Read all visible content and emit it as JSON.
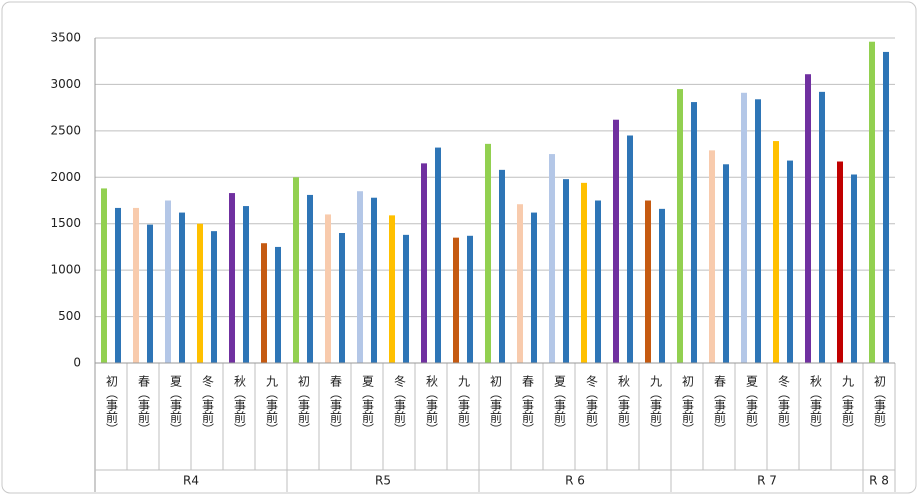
{
  "chart_data": {
    "type": "bar",
    "groups": [
      {
        "label": "R4",
        "categories": [
          "初（事前）",
          "春（事前）",
          "夏（事前）",
          "冬（事前）",
          "秋（事前）",
          "九（事前）"
        ]
      },
      {
        "label": "R5",
        "categories": [
          "初（事前）",
          "春（事前）",
          "夏（事前）",
          "冬（事前）",
          "秋（事前）",
          "九（事前）"
        ]
      },
      {
        "label": "R 6",
        "categories": [
          "初（事前）",
          "春（事前）",
          "夏（事前）",
          "冬（事前）",
          "秋（事前）",
          "九（事前）"
        ]
      },
      {
        "label": "R 7",
        "categories": [
          "初（事前）",
          "春（事前）",
          "夏（事前）",
          "冬（事前）",
          "秋（事前）",
          "九（事前）"
        ]
      },
      {
        "label": "R 8",
        "categories": [
          "初（事前）"
        ]
      }
    ],
    "series": [
      {
        "colors": [
          "#92d050",
          "#f8cbad",
          "#b4c7e7",
          "#ffc000",
          "#7030a0",
          "#c55a11",
          "#92d050",
          "#f8cbad",
          "#b4c7e7",
          "#ffc000",
          "#7030a0",
          "#c55a11",
          "#92d050",
          "#f8cbad",
          "#b4c7e7",
          "#ffc000",
          "#7030a0",
          "#c55a11",
          "#92d050",
          "#f8cbad",
          "#b4c7e7",
          "#ffc000",
          "#7030a0",
          "#c00000",
          "#92d050"
        ],
        "values": [
          1880,
          1670,
          1750,
          1500,
          1830,
          1290,
          2000,
          1600,
          1850,
          1590,
          2150,
          1350,
          2360,
          1710,
          2250,
          1940,
          2620,
          1750,
          2950,
          2290,
          2910,
          2390,
          3110,
          2170,
          3460
        ]
      },
      {
        "color": "#2e75b6",
        "values": [
          1670,
          1490,
          1620,
          1420,
          1690,
          1250,
          1810,
          1400,
          1780,
          1380,
          2320,
          1370,
          2080,
          1620,
          1980,
          1750,
          2450,
          1660,
          2810,
          2140,
          2840,
          2180,
          2920,
          2030,
          3350
        ]
      }
    ],
    "ylim": [
      0,
      3500
    ],
    "yticks": [
      0,
      500,
      1000,
      1500,
      2000,
      2500,
      3000,
      3500
    ],
    "grid": true
  }
}
